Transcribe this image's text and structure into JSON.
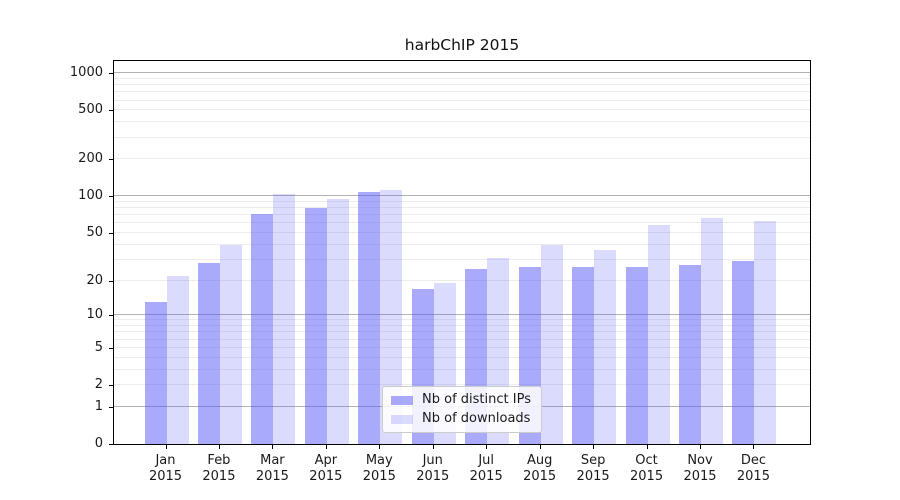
{
  "title": "harbChIP 2015",
  "chart_data": {
    "type": "bar",
    "title": "harbChIP 2015",
    "xlabel": "",
    "ylabel": "",
    "categories": [
      "Jan",
      "Feb",
      "Mar",
      "Apr",
      "May",
      "Jun",
      "Jul",
      "Aug",
      "Sep",
      "Oct",
      "Nov",
      "Dec"
    ],
    "x_sublabel": "2015",
    "series": [
      {
        "name": "Nb of distinct IPs",
        "color": "rgba(85,85,245,0.50)",
        "values": [
          13,
          28,
          72,
          80,
          108,
          17,
          25,
          26,
          26,
          26,
          27,
          29
        ]
      },
      {
        "name": "Nb of downloads",
        "color": "rgba(85,85,245,0.21)",
        "values": [
          22,
          40,
          105,
          95,
          112,
          19,
          31,
          40,
          36,
          58,
          66,
          63
        ]
      }
    ],
    "yscale": "log1p",
    "ylim": [
      0,
      1257
    ],
    "ytick_values": [
      0,
      1,
      2,
      5,
      10,
      20,
      50,
      100,
      200,
      500,
      1000
    ],
    "major_grid_values": [
      1,
      10,
      100,
      1000
    ],
    "minor_grid_values": [
      2,
      3,
      4,
      5,
      6,
      7,
      8,
      9,
      20,
      30,
      40,
      50,
      60,
      70,
      80,
      90,
      200,
      300,
      400,
      500,
      600,
      700,
      800,
      900
    ],
    "grid": true,
    "legend_position": "lower center"
  },
  "colors": {
    "bar_dark": "rgba(85,85,245,0.50)",
    "bar_light": "rgba(85,85,245,0.21)",
    "major_grid": "#b2b2b2",
    "minor_grid": "#ececec",
    "axis": "#000000",
    "background": "#ffffff"
  }
}
